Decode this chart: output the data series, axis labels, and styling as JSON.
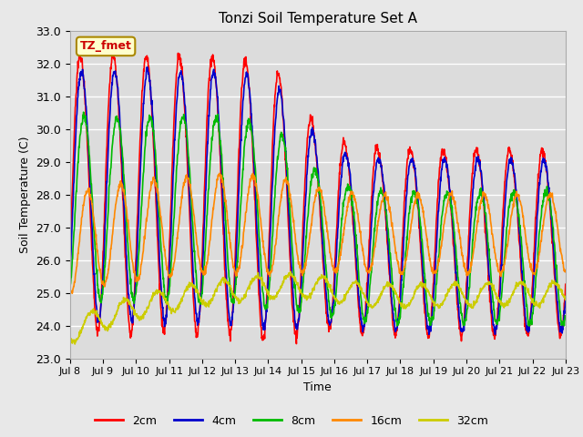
{
  "title": "Tonzi Soil Temperature Set A",
  "xlabel": "Time",
  "ylabel": "Soil Temperature (C)",
  "ylim": [
    23.0,
    33.0
  ],
  "xlim": [
    0,
    15
  ],
  "yticks": [
    23.0,
    24.0,
    25.0,
    26.0,
    27.0,
    28.0,
    29.0,
    30.0,
    31.0,
    32.0,
    33.0
  ],
  "xtick_labels": [
    "Jul 8",
    "Jul 9",
    "Jul 10",
    "Jul 11",
    "Jul 12",
    "Jul 13",
    "Jul 14",
    "Jul 15",
    "Jul 16",
    "Jul 17",
    "Jul 18",
    "Jul 19",
    "Jul 20",
    "Jul 21",
    "Jul 22",
    "Jul 23"
  ],
  "xtick_positions": [
    0,
    1,
    2,
    3,
    4,
    5,
    6,
    7,
    8,
    9,
    10,
    11,
    12,
    13,
    14,
    15
  ],
  "line_colors": {
    "2cm": "#ff0000",
    "4cm": "#0000cc",
    "8cm": "#00bb00",
    "16cm": "#ff8800",
    "32cm": "#cccc00"
  },
  "line_widths": {
    "2cm": 1.2,
    "4cm": 1.2,
    "8cm": 1.2,
    "16cm": 1.2,
    "32cm": 1.2
  },
  "label_text": "TZ_fmet",
  "label_bg": "#ffffcc",
  "label_edge": "#aa8800",
  "label_text_color": "#cc0000",
  "fig_facecolor": "#e8e8e8",
  "ax_facecolor": "#dcdcdc",
  "grid_color": "#ffffff"
}
